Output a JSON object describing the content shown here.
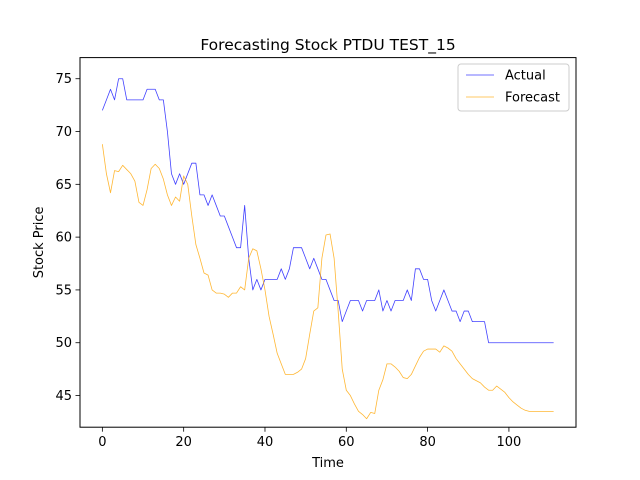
{
  "chart_data": {
    "type": "line",
    "title": "Forecasting Stock PTDU TEST_15",
    "xlabel": "Time",
    "ylabel": "Stock Price",
    "xlim": [
      -5.5,
      116.5
    ],
    "ylim": [
      42,
      77
    ],
    "xticks": [
      0,
      20,
      40,
      60,
      80,
      100
    ],
    "yticks": [
      45,
      50,
      55,
      60,
      65,
      70,
      75
    ],
    "grid": false,
    "legend_position": "top-right",
    "series": [
      {
        "name": "Actual",
        "color": "#0000ff",
        "x": [
          0,
          1,
          2,
          3,
          4,
          5,
          6,
          7,
          8,
          9,
          10,
          11,
          12,
          13,
          14,
          15,
          16,
          17,
          18,
          19,
          20,
          21,
          22,
          23,
          24,
          25,
          26,
          27,
          28,
          29,
          30,
          31,
          32,
          33,
          34,
          35,
          36,
          37,
          38,
          39,
          40,
          41,
          42,
          43,
          44,
          45,
          46,
          47,
          48,
          49,
          50,
          51,
          52,
          53,
          54,
          55,
          56,
          57,
          58,
          59,
          60,
          61,
          62,
          63,
          64,
          65,
          66,
          67,
          68,
          69,
          70,
          71,
          72,
          73,
          74,
          75,
          76,
          77,
          78,
          79,
          80,
          81,
          82,
          83,
          84,
          85,
          86,
          87,
          88,
          89,
          90,
          91,
          92,
          93,
          94,
          95,
          96,
          97,
          98,
          99,
          100,
          101,
          102,
          103,
          104,
          105,
          106,
          107,
          108,
          109,
          110,
          111
        ],
        "values": [
          72,
          73,
          74,
          73,
          75,
          75,
          73,
          73,
          73,
          73,
          73,
          74,
          74,
          74,
          73,
          73,
          70,
          66,
          65,
          66,
          65,
          66,
          67,
          67,
          64,
          64,
          63,
          64,
          63,
          62,
          62,
          61,
          60,
          59,
          59,
          63,
          58,
          55,
          56,
          55,
          56,
          56,
          56,
          56,
          57,
          56,
          57,
          59,
          59,
          59,
          58,
          57,
          58,
          57,
          56,
          56,
          55,
          54,
          54,
          52,
          53,
          54,
          54,
          54,
          53,
          54,
          54,
          54,
          55,
          53,
          54,
          53,
          54,
          54,
          54,
          55,
          54,
          57,
          57,
          56,
          56,
          54,
          53,
          54,
          55,
          54,
          53,
          53,
          52,
          53,
          53,
          52,
          52,
          52,
          52,
          50,
          50,
          50,
          50,
          50,
          50,
          50,
          50,
          50,
          50,
          50,
          50,
          50,
          50,
          50,
          50,
          50
        ]
      },
      {
        "name": "Forecast",
        "color": "#ffa500",
        "x": [
          0,
          1,
          2,
          3,
          4,
          5,
          6,
          7,
          8,
          9,
          10,
          11,
          12,
          13,
          14,
          15,
          16,
          17,
          18,
          19,
          20,
          21,
          22,
          23,
          24,
          25,
          26,
          27,
          28,
          29,
          30,
          31,
          32,
          33,
          34,
          35,
          36,
          37,
          38,
          39,
          40,
          41,
          42,
          43,
          44,
          45,
          46,
          47,
          48,
          49,
          50,
          51,
          52,
          53,
          54,
          55,
          56,
          57,
          58,
          59,
          60,
          61,
          62,
          63,
          64,
          65,
          66,
          67,
          68,
          69,
          70,
          71,
          72,
          73,
          74,
          75,
          76,
          77,
          78,
          79,
          80,
          81,
          82,
          83,
          84,
          85,
          86,
          87,
          88,
          89,
          90,
          91,
          92,
          93,
          94,
          95,
          96,
          97,
          98,
          99,
          100,
          101,
          102,
          103,
          104,
          105,
          106,
          107,
          108,
          109,
          110,
          111
        ],
        "values": [
          68.8,
          66,
          64.2,
          66.3,
          66.2,
          66.8,
          66.4,
          66,
          65.3,
          63.3,
          63,
          64.5,
          66.5,
          66.9,
          66.5,
          65.5,
          64,
          63,
          63.8,
          63.4,
          65.8,
          65,
          62,
          59.3,
          58,
          56.6,
          56.4,
          55,
          54.7,
          54.7,
          54.6,
          54.3,
          54.7,
          54.7,
          55.3,
          55,
          58,
          58.9,
          58.7,
          57,
          55,
          52.5,
          50.8,
          49,
          48,
          47,
          47,
          47,
          47.2,
          47.5,
          48.5,
          50.8,
          53,
          53.3,
          58,
          60.2,
          60.3,
          58,
          53,
          47.5,
          45.5,
          45,
          44.2,
          43.5,
          43.2,
          42.8,
          43.4,
          43.3,
          45.5,
          46.5,
          48,
          48,
          47.7,
          47.3,
          46.7,
          46.6,
          47,
          47.8,
          48.6,
          49.2,
          49.4,
          49.4,
          49.4,
          49.1,
          49.7,
          49.5,
          49.2,
          48.5,
          48,
          47.5,
          47,
          46.6,
          46.4,
          46.2,
          45.8,
          45.5,
          45.5,
          45.9,
          45.6,
          45.3,
          44.8,
          44.4,
          44.1,
          43.8,
          43.6,
          43.5,
          43.5,
          43.5,
          43.5,
          43.5,
          43.5,
          43.5
        ]
      }
    ]
  }
}
